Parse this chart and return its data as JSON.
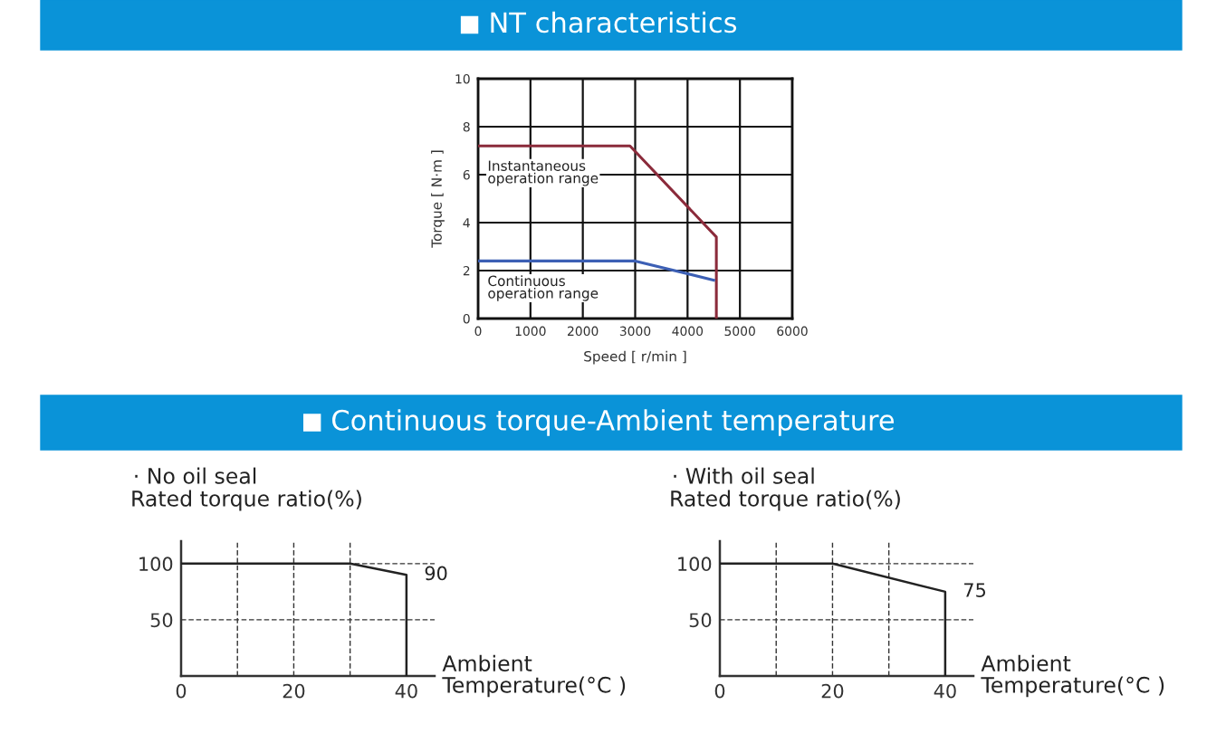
{
  "chart_data": [
    {
      "type": "line",
      "title": "NT characteristics",
      "xlabel": "Speed [ r/min ]",
      "ylabel": "Torque [ N·m ]",
      "xlim": [
        0,
        6000
      ],
      "ylim": [
        0,
        10
      ],
      "xticks": [
        0,
        1000,
        2000,
        3000,
        4000,
        5000,
        6000
      ],
      "yticks": [
        0,
        2,
        4,
        6,
        8,
        10
      ],
      "grid": true,
      "marker": "none",
      "line_style": "solid",
      "series": [
        {
          "name": "Instantaneous\noperation range",
          "color": "#8b2b3b",
          "x": [
            0,
            2900,
            4550,
            4550
          ],
          "values": [
            7.2,
            7.2,
            3.4,
            0
          ]
        },
        {
          "name": "Continuous\noperation range",
          "color": "#3c5fb4",
          "x": [
            0,
            3000,
            4500
          ],
          "values": [
            2.4,
            2.4,
            1.6
          ]
        }
      ]
    },
    {
      "type": "line",
      "title": "Continuous torque-Ambient temperature",
      "subtitle": "· No oil seal",
      "ylabel": "Rated torque ratio(%)",
      "xlabel": "Ambient\nTemperature(°C )",
      "xlim": [
        0,
        45
      ],
      "ylim": [
        0,
        120
      ],
      "xticks": [
        0,
        20,
        40
      ],
      "yticks": [
        50,
        100
      ],
      "grid": "y",
      "ref_lines": [
        {
          "axis": "x",
          "value": 10,
          "line_style": "dashed"
        },
        {
          "axis": "x",
          "value": 20,
          "line_style": "dashed"
        },
        {
          "axis": "x",
          "value": 30,
          "line_style": "dashed"
        }
      ],
      "marker": "none",
      "line_style": "solid",
      "series": [
        {
          "color": "#222222",
          "x": [
            0,
            30,
            40,
            40
          ],
          "values": [
            100,
            100,
            90,
            0
          ]
        }
      ],
      "annotations": [
        {
          "text": "90",
          "x": 40,
          "y": 90
        }
      ]
    },
    {
      "type": "line",
      "subtitle": "· With oil seal",
      "ylabel": "Rated torque ratio(%)",
      "xlabel": "Ambient\nTemperature(°C )",
      "xlim": [
        0,
        45
      ],
      "ylim": [
        0,
        120
      ],
      "xticks": [
        0,
        20,
        40
      ],
      "yticks": [
        50,
        100
      ],
      "grid": "y",
      "ref_lines": [
        {
          "axis": "x",
          "value": 10,
          "line_style": "dashed"
        },
        {
          "axis": "x",
          "value": 20,
          "line_style": "dashed"
        },
        {
          "axis": "x",
          "value": 30,
          "line_style": "dashed"
        }
      ],
      "marker": "none",
      "line_style": "solid",
      "series": [
        {
          "color": "#222222",
          "x": [
            0,
            20,
            40,
            40
          ],
          "values": [
            100,
            100,
            75,
            0
          ]
        }
      ],
      "annotations": [
        {
          "text": "75",
          "x": 40,
          "y": 75
        }
      ]
    }
  ]
}
